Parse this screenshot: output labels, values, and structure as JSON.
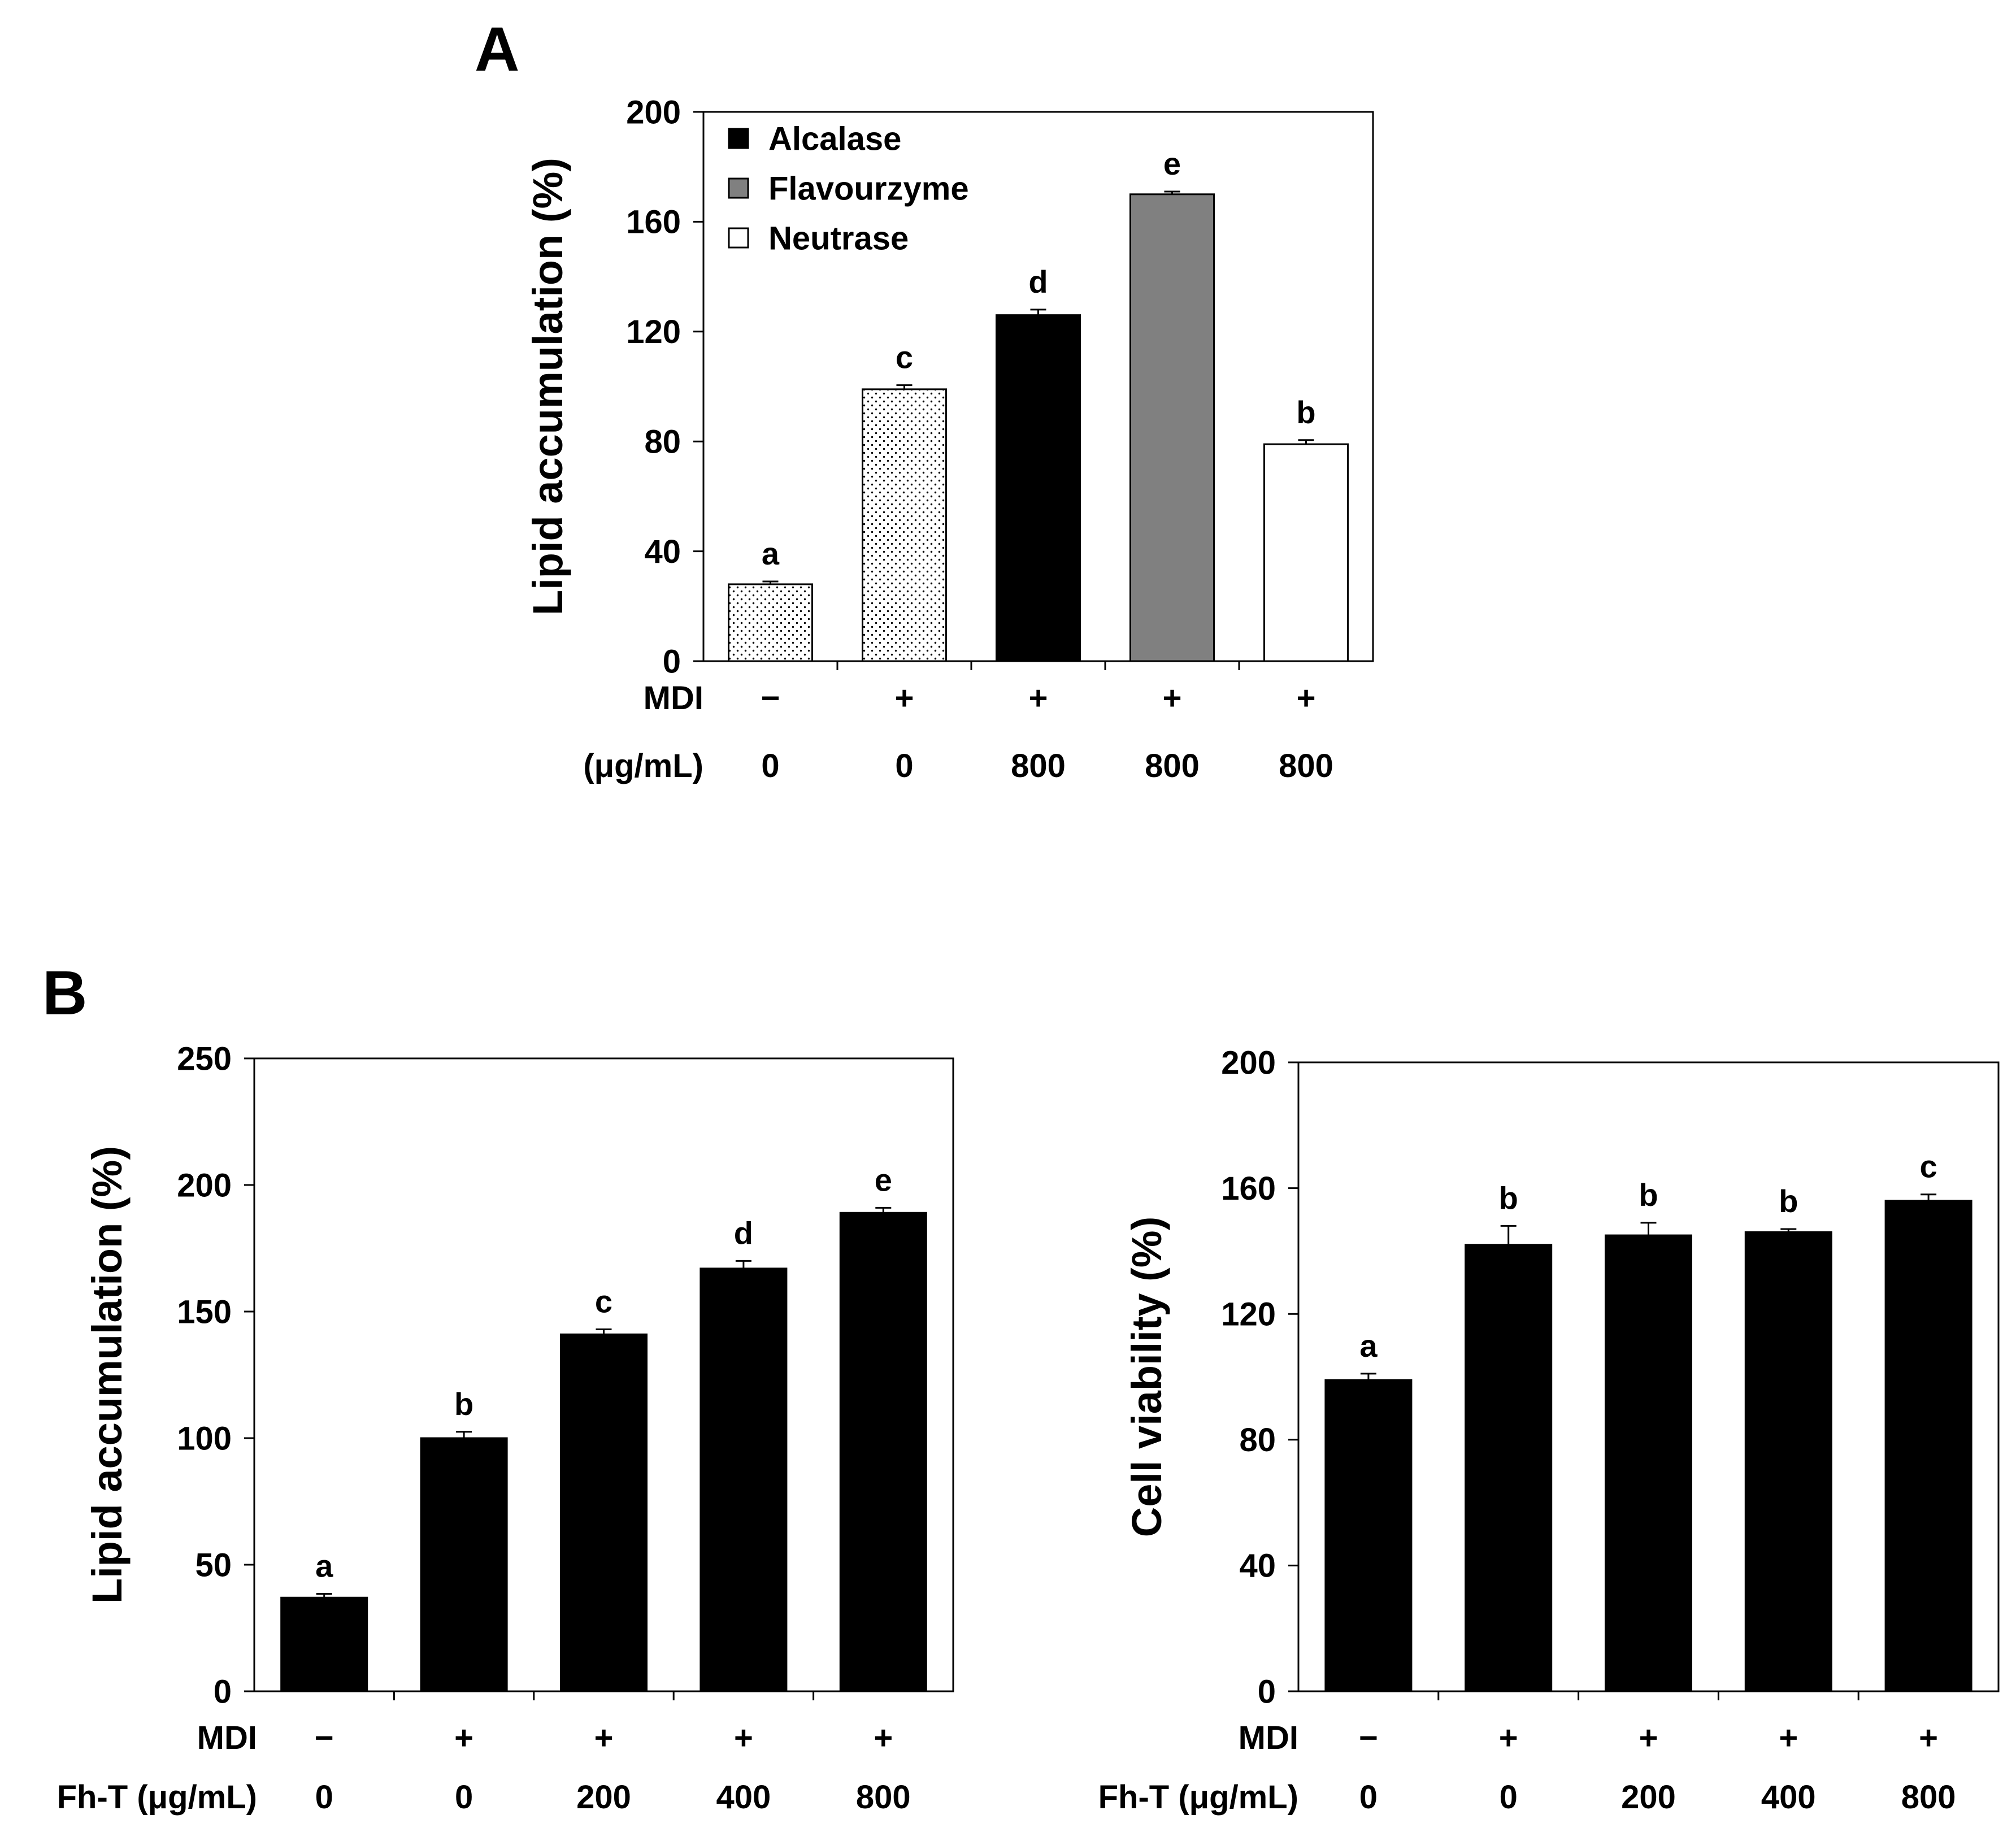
{
  "colors": {
    "black": "#000000",
    "gray": "#808080",
    "white": "#ffffff",
    "dotted": "#ffffff"
  },
  "panel_labels": {
    "a": "A",
    "b": "B"
  },
  "chart_data": [
    {
      "id": "chartA",
      "panel": "A",
      "type": "bar",
      "title": "",
      "xlabel": "",
      "ylabel": "Lipid accumulation (%)",
      "ylim": [
        0,
        200
      ],
      "yticks": [
        0,
        40,
        80,
        120,
        160,
        200
      ],
      "grid": false,
      "legend_position": "top-left",
      "legend": [
        {
          "label": "Alcalase",
          "fill": "black"
        },
        {
          "label": "Flavourzyme",
          "fill": "gray"
        },
        {
          "label": "Neutrase",
          "fill": "white"
        }
      ],
      "row_labels": [
        "MDI",
        "(μg/mL)"
      ],
      "categories": [
        {
          "mdi": "−",
          "conc": "0"
        },
        {
          "mdi": "+",
          "conc": "0"
        },
        {
          "mdi": "+",
          "conc": "800"
        },
        {
          "mdi": "+",
          "conc": "800"
        },
        {
          "mdi": "+",
          "conc": "800"
        }
      ],
      "values": [
        28,
        99,
        126,
        170,
        79
      ],
      "errors": [
        1,
        1.5,
        2,
        1,
        1.5
      ],
      "fills": [
        "dotted",
        "dotted",
        "black",
        "gray",
        "white"
      ],
      "sig_letters": [
        "a",
        "c",
        "d",
        "e",
        "b"
      ]
    },
    {
      "id": "chartB1",
      "panel": "B",
      "type": "bar",
      "title": "",
      "xlabel": "",
      "ylabel": "Lipid accumulation (%)",
      "ylim": [
        0,
        250
      ],
      "yticks": [
        0,
        50,
        100,
        150,
        200,
        250
      ],
      "grid": false,
      "legend": [],
      "row_labels": [
        "MDI",
        "Fh-T (μg/mL)"
      ],
      "categories": [
        {
          "mdi": "−",
          "conc": "0"
        },
        {
          "mdi": "+",
          "conc": "0"
        },
        {
          "mdi": "+",
          "conc": "200"
        },
        {
          "mdi": "+",
          "conc": "400"
        },
        {
          "mdi": "+",
          "conc": "800"
        }
      ],
      "values": [
        37,
        100,
        141,
        167,
        189
      ],
      "errors": [
        1.5,
        2.5,
        2,
        3,
        2
      ],
      "fills": [
        "black",
        "black",
        "black",
        "black",
        "black"
      ],
      "sig_letters": [
        "a",
        "b",
        "c",
        "d",
        "e"
      ]
    },
    {
      "id": "chartB2",
      "panel": "B",
      "type": "bar",
      "title": "",
      "xlabel": "",
      "ylabel": "Cell viability (%)",
      "ylim": [
        0,
        200
      ],
      "yticks": [
        0,
        40,
        80,
        120,
        160,
        200
      ],
      "grid": false,
      "legend": [],
      "row_labels": [
        "MDI",
        "Fh-T (μg/mL)"
      ],
      "categories": [
        {
          "mdi": "−",
          "conc": "0"
        },
        {
          "mdi": "+",
          "conc": "0"
        },
        {
          "mdi": "+",
          "conc": "200"
        },
        {
          "mdi": "+",
          "conc": "400"
        },
        {
          "mdi": "+",
          "conc": "800"
        }
      ],
      "values": [
        99,
        142,
        145,
        146,
        156
      ],
      "errors": [
        2,
        6,
        4,
        1,
        2
      ],
      "fills": [
        "black",
        "black",
        "black",
        "black",
        "black"
      ],
      "sig_letters": [
        "a",
        "b",
        "b",
        "b",
        "c"
      ]
    }
  ]
}
